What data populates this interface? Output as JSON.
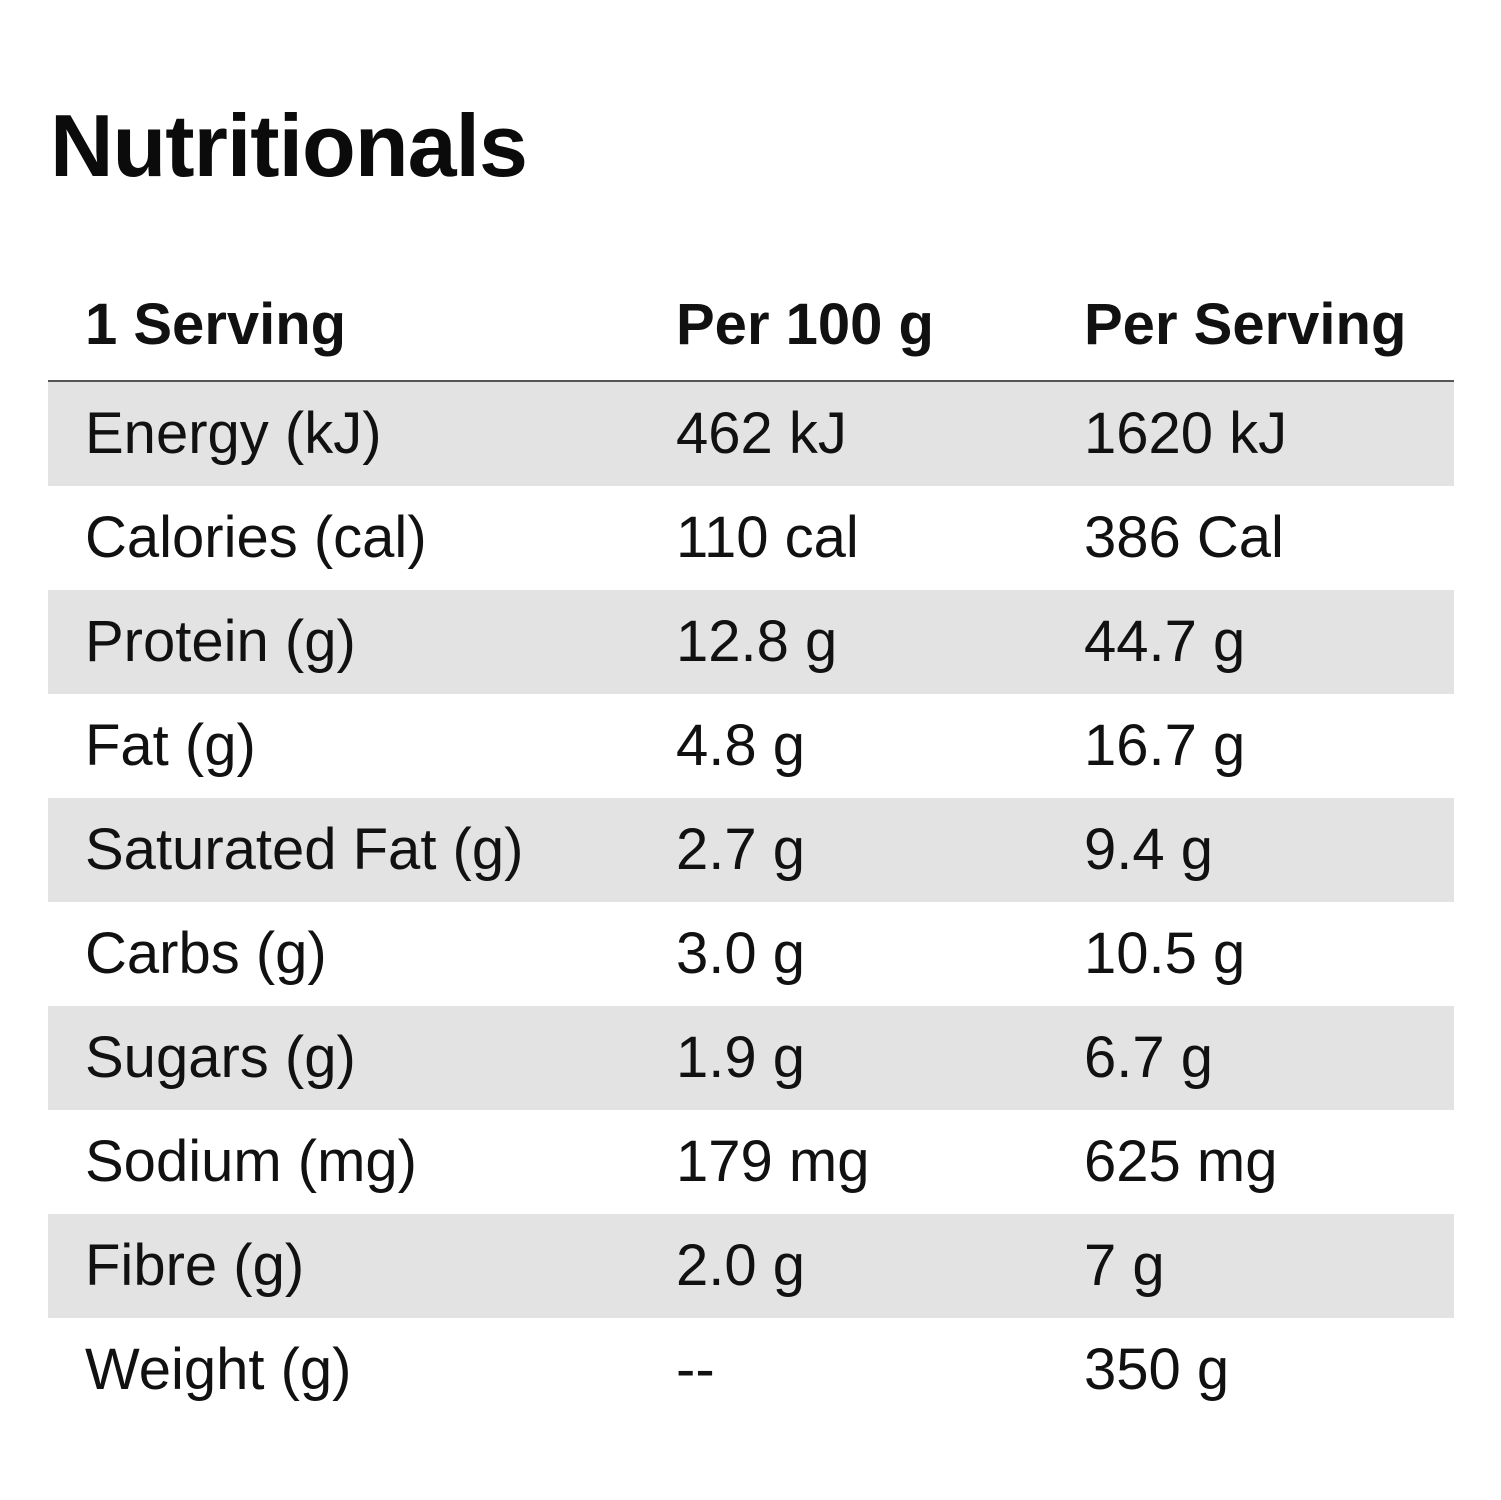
{
  "title": "Nutritionals",
  "table": {
    "headers": [
      "1 Serving",
      "Per 100 g",
      "Per Serving"
    ],
    "rows": [
      [
        "Energy (kJ)",
        "462 kJ",
        "1620 kJ"
      ],
      [
        "Calories (cal)",
        "110 cal",
        "386 Cal"
      ],
      [
        "Protein (g)",
        "12.8 g",
        "44.7 g"
      ],
      [
        "Fat (g)",
        "4.8 g",
        "16.7 g"
      ],
      [
        "Saturated Fat (g)",
        "2.7 g",
        "9.4 g"
      ],
      [
        "Carbs (g)",
        "3.0 g",
        "10.5 g"
      ],
      [
        "Sugars (g)",
        "1.9 g",
        "6.7 g"
      ],
      [
        "Sodium (mg)",
        "179 mg",
        "625 mg"
      ],
      [
        "Fibre (g)",
        "2.0 g",
        "7 g"
      ],
      [
        "Weight (g)",
        "--",
        "350 g"
      ]
    ]
  },
  "colors": {
    "shaded_row": "#e3e3e3",
    "text": "#111111",
    "divider": "#555555"
  }
}
